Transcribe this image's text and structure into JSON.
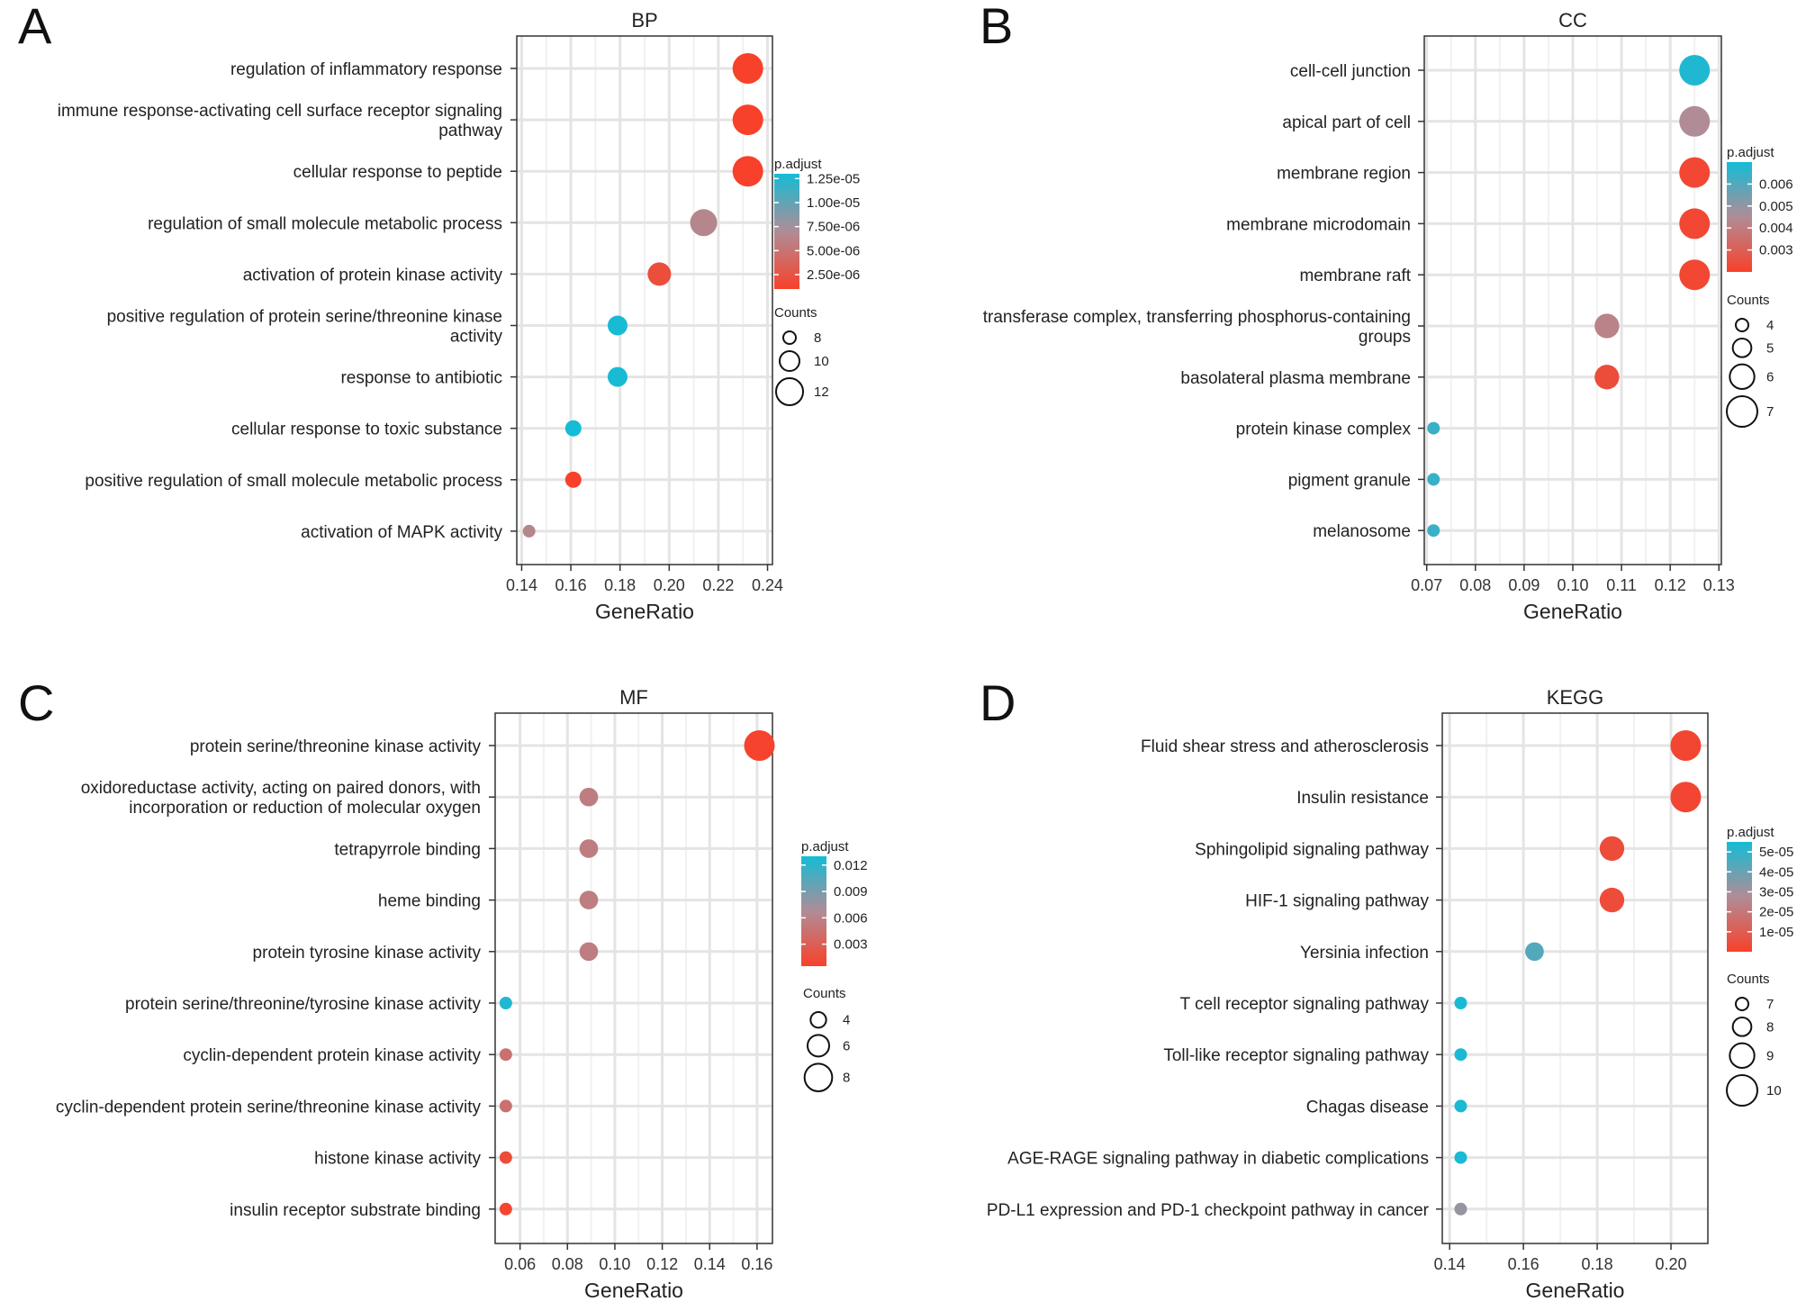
{
  "figure_label": "Gene enrichment dot plots",
  "chart_data": [
    {
      "panel": "A",
      "type": "scatter",
      "title": "BP",
      "xlabel": "GeneRatio",
      "xlim": [
        0.138,
        0.242
      ],
      "xticks": [
        0.14,
        0.16,
        0.18,
        0.2,
        0.22,
        0.24
      ],
      "xtick_labels": [
        "0.14",
        "0.16",
        "0.18",
        "0.20",
        "0.22",
        "0.24"
      ],
      "categories": [
        [
          "regulation of inflammatory response"
        ],
        [
          "immune response-activating cell surface receptor signaling",
          "pathway"
        ],
        [
          "cellular response to peptide"
        ],
        [
          "regulation of small molecule metabolic process"
        ],
        [
          "activation of protein kinase activity"
        ],
        [
          "positive regulation of protein serine/threonine kinase",
          "activity"
        ],
        [
          "response to antibiotic"
        ],
        [
          "cellular response to toxic substance"
        ],
        [
          "positive regulation of small molecule metabolic process"
        ],
        [
          "activation of MAPK activity"
        ]
      ],
      "x": [
        0.232,
        0.232,
        0.232,
        0.214,
        0.196,
        0.179,
        0.179,
        0.161,
        0.161,
        0.143
      ],
      "counts": [
        13,
        13,
        13,
        12,
        11,
        10,
        10,
        9,
        9,
        8
      ],
      "p_adjust": [
        1e-06,
        1e-06,
        1e-06,
        6.5e-06,
        2e-06,
        1.28e-05,
        1.28e-05,
        1.3e-05,
        1e-06,
        6.5e-06
      ],
      "color_legend": {
        "title": "p.adjust",
        "range": [
          1e-06,
          1.3e-05
        ],
        "ticks": [
          1.25e-05,
          1e-05,
          7.5e-06,
          5e-06,
          2.5e-06
        ],
        "tick_labels": [
          "1.25e-05",
          "1.00e-05",
          "7.50e-06",
          "5.00e-06",
          "2.50e-06"
        ]
      },
      "size_legend": {
        "title": "Counts",
        "values": [
          8,
          10,
          12
        ],
        "labels": [
          "8",
          "10",
          "12"
        ],
        "range": [
          8,
          13
        ]
      }
    },
    {
      "panel": "B",
      "type": "scatter",
      "title": "CC",
      "xlabel": "GeneRatio",
      "xlim": [
        0.0695,
        0.1305
      ],
      "xticks": [
        0.07,
        0.08,
        0.09,
        0.1,
        0.11,
        0.12,
        0.13
      ],
      "xtick_labels": [
        "0.07",
        "0.08",
        "0.09",
        "0.10",
        "0.11",
        "0.12",
        "0.13"
      ],
      "categories": [
        [
          "cell-cell junction"
        ],
        [
          "apical part of cell"
        ],
        [
          "membrane region"
        ],
        [
          "membrane microdomain"
        ],
        [
          "membrane raft"
        ],
        [
          "transferase complex, transferring phosphorus-containing",
          "groups"
        ],
        [
          "basolateral plasma membrane"
        ],
        [
          "protein kinase complex"
        ],
        [
          "pigment granule"
        ],
        [
          "melanosome"
        ]
      ],
      "x": [
        0.125,
        0.125,
        0.125,
        0.125,
        0.125,
        0.107,
        0.107,
        0.0714,
        0.0714,
        0.0714
      ],
      "counts": [
        7,
        7,
        7,
        7,
        7,
        6,
        6,
        4,
        4,
        4
      ],
      "p_adjust": [
        0.0068,
        0.0045,
        0.0022,
        0.0022,
        0.0022,
        0.0042,
        0.0024,
        0.0064,
        0.0064,
        0.0064
      ],
      "color_legend": {
        "title": "p.adjust",
        "range": [
          0.002,
          0.007
        ],
        "ticks": [
          0.006,
          0.005,
          0.004,
          0.003
        ],
        "tick_labels": [
          "0.006",
          "0.005",
          "0.004",
          "0.003"
        ]
      },
      "size_legend": {
        "title": "Counts",
        "values": [
          4,
          5,
          6,
          7
        ],
        "labels": [
          "4",
          "5",
          "6",
          "7"
        ],
        "range": [
          4,
          7
        ]
      }
    },
    {
      "panel": "C",
      "type": "scatter",
      "title": "MF",
      "xlabel": "GeneRatio",
      "xlim": [
        0.0495,
        0.1665
      ],
      "xticks": [
        0.06,
        0.08,
        0.1,
        0.12,
        0.14,
        0.16
      ],
      "xtick_labels": [
        "0.06",
        "0.08",
        "0.10",
        "0.12",
        "0.14",
        "0.16"
      ],
      "categories": [
        [
          "protein serine/threonine kinase activity"
        ],
        [
          "oxidoreductase activity, acting on paired donors, with",
          "incorporation or reduction of molecular oxygen"
        ],
        [
          "tetrapyrrole binding"
        ],
        [
          "heme binding"
        ],
        [
          "protein tyrosine kinase activity"
        ],
        [
          "protein serine/threonine/tyrosine kinase activity"
        ],
        [
          "cyclin-dependent protein kinase activity"
        ],
        [
          "cyclin-dependent protein serine/threonine kinase activity"
        ],
        [
          "histone kinase activity"
        ],
        [
          "insulin receptor substrate binding"
        ]
      ],
      "x": [
        0.161,
        0.089,
        0.089,
        0.089,
        0.089,
        0.054,
        0.054,
        0.054,
        0.054,
        0.054
      ],
      "counts": [
        9,
        5,
        5,
        5,
        5,
        3,
        3,
        3,
        3,
        3
      ],
      "p_adjust": [
        0.0007,
        0.0055,
        0.0055,
        0.0055,
        0.0055,
        0.0125,
        0.0045,
        0.0045,
        0.0015,
        0.0008
      ],
      "color_legend": {
        "title": "p.adjust",
        "range": [
          0.0005,
          0.013
        ],
        "ticks": [
          0.012,
          0.009,
          0.006,
          0.003
        ],
        "tick_labels": [
          "0.012",
          "0.009",
          "0.006",
          "0.003"
        ]
      },
      "size_legend": {
        "title": "Counts",
        "values": [
          4,
          6,
          8
        ],
        "labels": [
          "4",
          "6",
          "8"
        ],
        "range": [
          3,
          9
        ]
      }
    },
    {
      "panel": "D",
      "type": "scatter",
      "title": "KEGG",
      "xlabel": "GeneRatio",
      "xlim": [
        0.138,
        0.21
      ],
      "xticks": [
        0.14,
        0.16,
        0.18,
        0.2
      ],
      "xtick_labels": [
        "0.14",
        "0.16",
        "0.18",
        "0.20"
      ],
      "categories": [
        [
          "Fluid shear stress and atherosclerosis"
        ],
        [
          "Insulin resistance"
        ],
        [
          "Sphingolipid signaling pathway"
        ],
        [
          "HIF-1 signaling pathway"
        ],
        [
          "Yersinia infection"
        ],
        [
          "T cell receptor signaling pathway"
        ],
        [
          "Toll-like receptor signaling pathway"
        ],
        [
          "Chagas disease"
        ],
        [
          "AGE-RAGE signaling pathway in diabetic complications"
        ],
        [
          "PD-L1 expression and PD-1 checkpoint pathway in cancer"
        ]
      ],
      "x": [
        0.204,
        0.204,
        0.184,
        0.184,
        0.163,
        0.143,
        0.143,
        0.143,
        0.143,
        0.143
      ],
      "counts": [
        10,
        10,
        9,
        9,
        8,
        7,
        7,
        7,
        7,
        7
      ],
      "p_adjust": [
        2e-06,
        2e-06,
        4e-06,
        4e-06,
        4.4e-05,
        5.4e-05,
        5.4e-05,
        5.4e-05,
        5.4e-05,
        3.2e-05
      ],
      "color_legend": {
        "title": "p.adjust",
        "range": [
          0.0,
          5.5e-05
        ],
        "ticks": [
          5e-05,
          4e-05,
          3e-05,
          2e-05,
          1e-05
        ],
        "tick_labels": [
          "5e-05",
          "4e-05",
          "3e-05",
          "2e-05",
          "1e-05"
        ]
      },
      "size_legend": {
        "title": "Counts",
        "values": [
          7,
          8,
          9,
          10
        ],
        "labels": [
          "7",
          "8",
          "9",
          "10"
        ],
        "range": [
          7,
          10
        ]
      }
    }
  ],
  "colors": {
    "low_p": "#f8412a",
    "high_p": "#14bcd6",
    "grid_major": "#e4e4e4",
    "grid_minor": "#f1f1f1",
    "panel_border": "#333333"
  }
}
